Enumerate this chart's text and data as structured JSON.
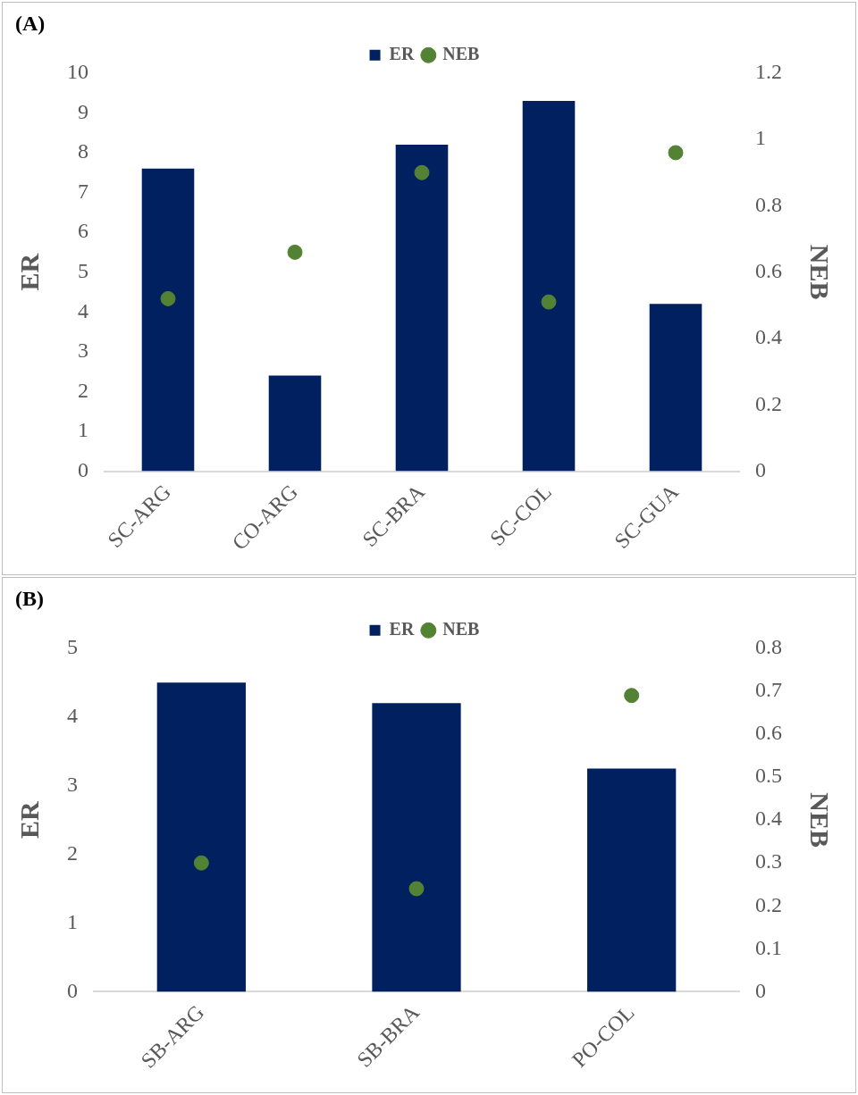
{
  "chart_data": [
    {
      "type": "bar",
      "title": "(A)",
      "categories": [
        "SC-ARG",
        "CO-ARG",
        "SC-BRA",
        "SC-COL",
        "SC-GUA"
      ],
      "ylabel": "ER",
      "y2label": "NEB",
      "legend": "top",
      "ylim": [
        0,
        10
      ],
      "yticks": [
        0,
        1,
        2,
        3,
        4,
        5,
        6,
        7,
        8,
        9,
        10
      ],
      "y2lim": [
        0,
        1.2
      ],
      "y2ticks": [
        0,
        0.2,
        0.4,
        0.6,
        0.8,
        1,
        1.2
      ],
      "series": [
        {
          "name": "ER",
          "color": "#002060",
          "values": [
            7.6,
            2.4,
            8.2,
            9.3,
            4.2
          ]
        },
        {
          "name": "NEB",
          "type": "scatter",
          "axis": "y2",
          "marker": "circle",
          "color": "#548235",
          "values": [
            0.52,
            0.66,
            0.9,
            0.51,
            0.96
          ]
        }
      ]
    },
    {
      "type": "bar",
      "title": "(B)",
      "categories": [
        "SB-ARG",
        "SB-BRA",
        "PO-COL"
      ],
      "ylabel": "ER",
      "y2label": "NEB",
      "legend": "top",
      "ylim": [
        0,
        5
      ],
      "yticks": [
        0,
        1,
        2,
        3,
        4,
        5
      ],
      "y2lim": [
        0,
        0.8
      ],
      "y2ticks": [
        0,
        0.1,
        0.2,
        0.3,
        0.4,
        0.5,
        0.6,
        0.7,
        0.8
      ],
      "series": [
        {
          "name": "ER",
          "color": "#002060",
          "values": [
            4.5,
            4.2,
            3.25
          ]
        },
        {
          "name": "NEB",
          "type": "scatter",
          "axis": "y2",
          "marker": "circle",
          "color": "#548235",
          "values": [
            0.3,
            0.24,
            0.69
          ]
        }
      ]
    }
  ]
}
